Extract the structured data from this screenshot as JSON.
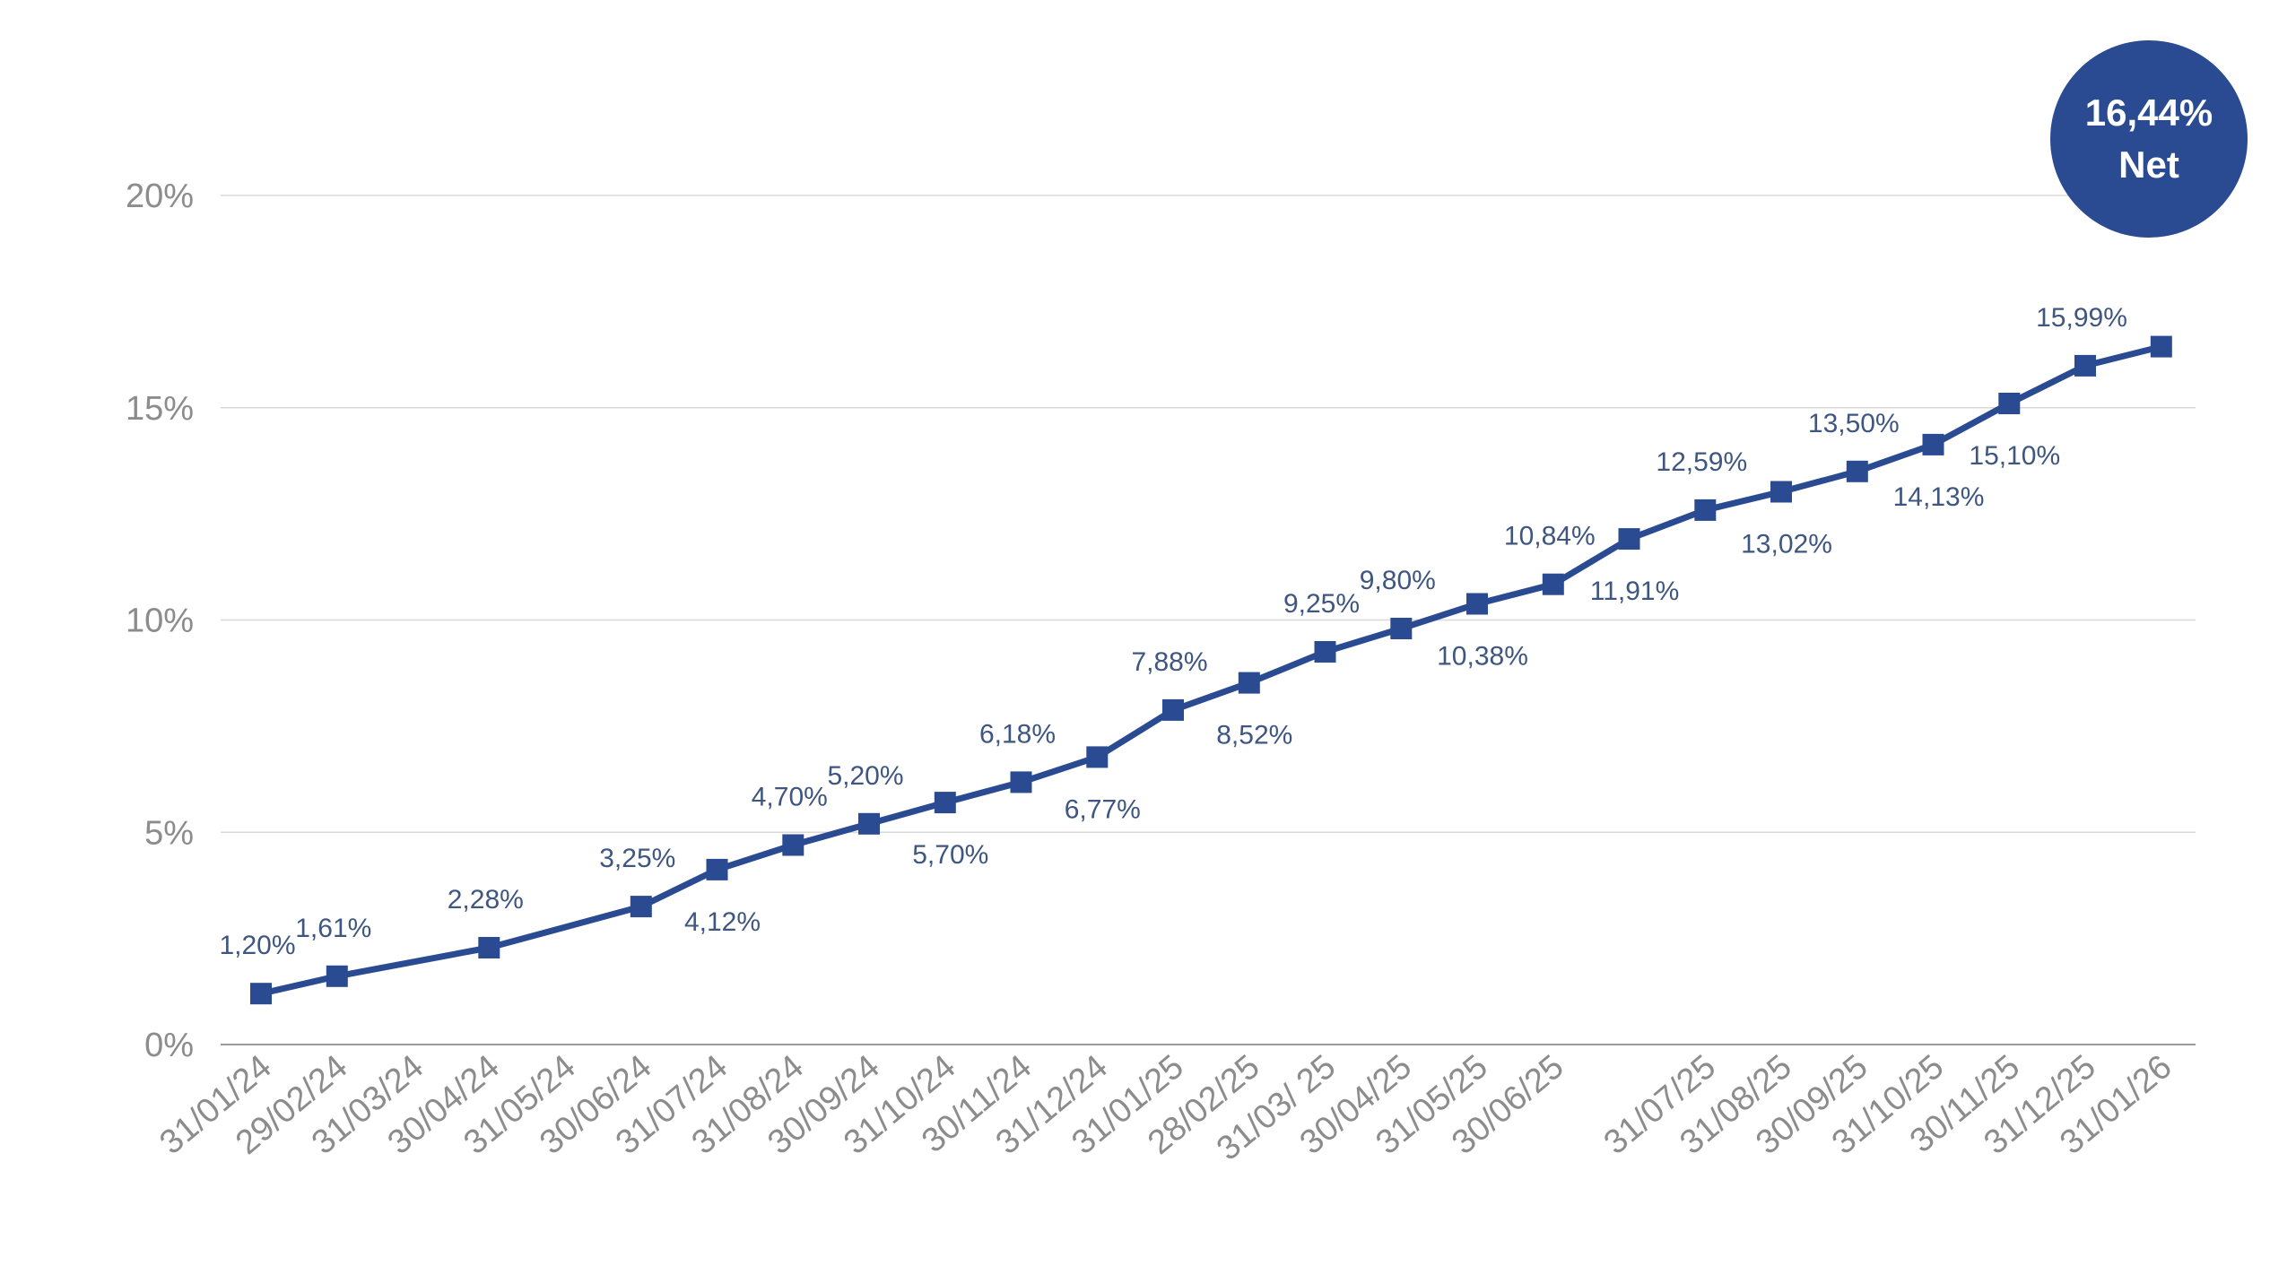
{
  "badge": {
    "value": "16,44%",
    "label": "Net"
  },
  "colors": {
    "series": "#2a4b92",
    "labels": "#3e5680",
    "ticks": "#8c8c8c",
    "grid": "#d8d8d8",
    "badge_bg": "#2a4b92"
  },
  "chart_data": {
    "type": "line",
    "title": "",
    "xlabel": "",
    "ylabel": "",
    "ylim": [
      0,
      20
    ],
    "grid": true,
    "legend": "none",
    "y_ticks": [
      0,
      5,
      10,
      15,
      20
    ],
    "y_tick_labels": [
      "0%",
      "5%",
      "10%",
      "15%",
      "20%"
    ],
    "x": [
      "31/01/24",
      "29/02/24",
      "31/03/24",
      "30/04/24",
      "31/05/24",
      "30/06/24",
      "31/07/24",
      "31/08/24",
      "30/09/24",
      "31/10/24",
      "30/11/24",
      "31/12/24",
      "31/01/25",
      "28/02/25",
      "31/03/ 25",
      "30/04/25",
      "31/05/25",
      "30/06/25",
      "",
      "31/07/25",
      "31/08/25",
      "30/09/25",
      "31/10/25",
      "30/11/25",
      "31/12/25",
      "31/01/26"
    ],
    "series": [
      {
        "values": [
          1.2,
          1.61,
          null,
          2.28,
          null,
          3.25,
          4.12,
          4.7,
          5.2,
          5.7,
          6.18,
          6.77,
          7.88,
          8.52,
          9.25,
          9.8,
          10.38,
          10.84,
          11.91,
          12.59,
          13.02,
          13.5,
          14.13,
          15.1,
          15.99,
          16.44
        ],
        "point_labels": [
          "1,20%",
          "1,61%",
          "",
          "2,28%",
          "",
          "3,25%",
          "4,12%",
          "4,70%",
          "5,20%",
          "5,70%",
          "6,18%",
          "6,77%",
          "7,88%",
          "8,52%",
          "9,25%",
          "9,80%",
          "10,38%",
          "10,84%",
          "11,91%",
          "12,59%",
          "13,02%",
          "13,50%",
          "14,13%",
          "15,10%",
          "15,99%",
          ""
        ],
        "label_position": [
          "above",
          "above",
          "",
          "above",
          "",
          "above",
          "below",
          "above",
          "above",
          "below",
          "above",
          "below",
          "above",
          "below",
          "above",
          "above",
          "below",
          "above",
          "below",
          "above",
          "below",
          "above",
          "below",
          "below",
          "above",
          ""
        ]
      }
    ]
  }
}
